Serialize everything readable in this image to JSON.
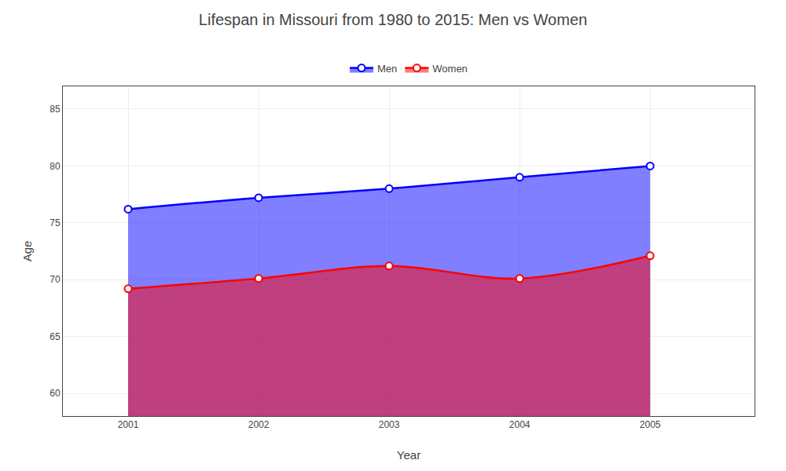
{
  "chart_data": {
    "type": "area",
    "title": "Lifespan in Missouri from 1980 to 2015: Men vs Women",
    "xlabel": "Year",
    "ylabel": "Age",
    "x": [
      2001,
      2002,
      2003,
      2004,
      2005
    ],
    "series": [
      {
        "name": "Men",
        "color": "#0000ff",
        "marker": "circle",
        "values": [
          76.2,
          77.2,
          78.0,
          79.0,
          80.0
        ]
      },
      {
        "name": "Women",
        "color": "#ff0000",
        "marker": "circle",
        "values": [
          69.2,
          70.1,
          71.2,
          70.1,
          72.1
        ]
      }
    ],
    "line_style": "smooth",
    "xlim": [
      2000.5,
      2005.8
    ],
    "ylim": [
      58,
      87
    ],
    "xticks": [
      2001,
      2002,
      2003,
      2004,
      2005
    ],
    "yticks": [
      60,
      65,
      70,
      75,
      80,
      85
    ],
    "grid": true,
    "legend": "top"
  }
}
